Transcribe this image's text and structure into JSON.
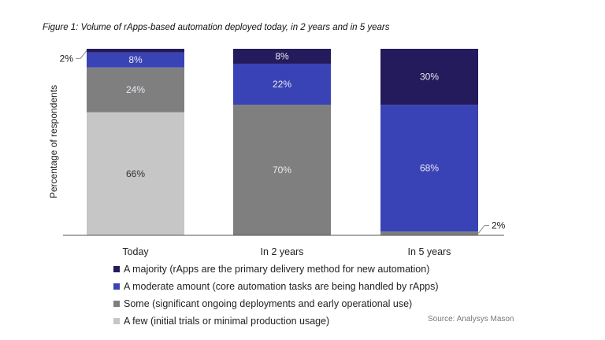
{
  "chart_data": {
    "type": "bar",
    "stacked": true,
    "title": "Figure 1: Volume of rApps-based automation deployed today, in 2 years and in 5 years",
    "ylabel": "Percentage of respondents",
    "xlabel": "",
    "ylim": [
      0,
      100
    ],
    "categories": [
      "Today",
      "In 2 years",
      "In 5 years"
    ],
    "series": [
      {
        "name": "A few (initial trials or minimal production usage)",
        "color": "#c6c6c6",
        "values": [
          66,
          0,
          0
        ]
      },
      {
        "name": "Some (significant ongoing deployments and early operational use)",
        "color": "#7f7f7f",
        "values": [
          24,
          70,
          2
        ]
      },
      {
        "name": "A moderate amount (core automation tasks are being handled by rApps)",
        "color": "#3a43b5",
        "values": [
          8,
          22,
          68
        ]
      },
      {
        "name": "A majority (rApps are the primary delivery method for new automation)",
        "color": "#231b5c",
        "values": [
          2,
          8,
          30
        ]
      }
    ],
    "legend_order": [
      3,
      2,
      1,
      0
    ],
    "source": "Source: Analysys Mason"
  }
}
